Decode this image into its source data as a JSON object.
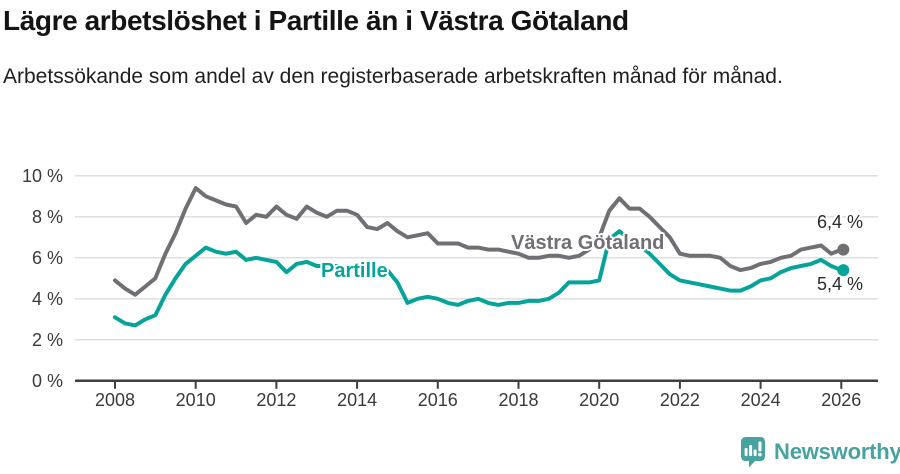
{
  "header": {},
  "chart_data": {
    "type": "line",
    "title": "Lägre arbetslöshet i Partille än i Västra Götaland",
    "subtitle": "Arbetssökande som andel av den registerbaserade arbetskraften månad för månad.",
    "unit": "%",
    "grid": "horizontal",
    "legend_position": "inline-labels",
    "xlim": [
      2007.0,
      2026.9
    ],
    "ylim": [
      0,
      10
    ],
    "y_ticks": [
      {
        "value": 0,
        "label": "0 %"
      },
      {
        "value": 2,
        "label": "2 %"
      },
      {
        "value": 4,
        "label": "4 %"
      },
      {
        "value": 6,
        "label": "6 %"
      },
      {
        "value": 8,
        "label": "8 %"
      },
      {
        "value": 10,
        "label": "10 %"
      }
    ],
    "x_ticks": [
      {
        "value": 2008,
        "label": "2008"
      },
      {
        "value": 2010,
        "label": "2010"
      },
      {
        "value": 2012,
        "label": "2012"
      },
      {
        "value": 2014,
        "label": "2014"
      },
      {
        "value": 2016,
        "label": "2016"
      },
      {
        "value": 2018,
        "label": "2018"
      },
      {
        "value": 2020,
        "label": "2020"
      },
      {
        "value": 2022,
        "label": "2022"
      },
      {
        "value": 2024,
        "label": "2024"
      },
      {
        "value": 2026,
        "label": "2026"
      }
    ],
    "x": [
      2008,
      2008.25,
      2008.5,
      2008.75,
      2009,
      2009.25,
      2009.5,
      2009.75,
      2010,
      2010.25,
      2010.5,
      2010.75,
      2011,
      2011.25,
      2011.5,
      2011.75,
      2012,
      2012.25,
      2012.5,
      2012.75,
      2013,
      2013.25,
      2013.5,
      2013.75,
      2014,
      2014.25,
      2014.5,
      2014.75,
      2015,
      2015.25,
      2015.5,
      2015.75,
      2016,
      2016.25,
      2016.5,
      2016.75,
      2017,
      2017.25,
      2017.5,
      2017.75,
      2018,
      2018.25,
      2018.5,
      2018.75,
      2019,
      2019.25,
      2019.5,
      2019.75,
      2020,
      2020.25,
      2020.5,
      2020.75,
      2021,
      2021.25,
      2021.5,
      2021.75,
      2022,
      2022.25,
      2022.5,
      2022.75,
      2023,
      2023.25,
      2023.5,
      2023.75,
      2024,
      2024.25,
      2024.5,
      2024.75,
      2025,
      2025.25,
      2025.5,
      2025.75,
      2026
    ],
    "series": [
      {
        "name": "Västra Götaland",
        "color": "#6f6f74",
        "end_value": 6.4,
        "end_label": "6,4 %",
        "values": [
          4.9,
          4.5,
          4.2,
          4.6,
          5.0,
          6.2,
          7.2,
          8.4,
          9.4,
          9.0,
          8.8,
          8.6,
          8.5,
          7.7,
          8.1,
          8.0,
          8.5,
          8.1,
          7.9,
          8.5,
          8.2,
          8.0,
          8.3,
          8.3,
          8.1,
          7.5,
          7.4,
          7.7,
          7.3,
          7.0,
          7.1,
          7.2,
          6.7,
          6.7,
          6.7,
          6.5,
          6.5,
          6.4,
          6.4,
          6.3,
          6.2,
          6.0,
          6.0,
          6.1,
          6.1,
          6.0,
          6.1,
          6.4,
          7.0,
          8.3,
          8.9,
          8.4,
          8.4,
          8.0,
          7.5,
          7.0,
          6.2,
          6.1,
          6.1,
          6.1,
          6.0,
          5.6,
          5.4,
          5.5,
          5.7,
          5.8,
          6.0,
          6.1,
          6.4,
          6.5,
          6.6,
          6.2,
          6.4
        ]
      },
      {
        "name": "Partille",
        "color": "#05a39a",
        "end_value": 5.4,
        "end_label": "5,4 %",
        "values": [
          3.1,
          2.8,
          2.7,
          3.0,
          3.2,
          4.2,
          5.0,
          5.7,
          6.1,
          6.5,
          6.3,
          6.2,
          6.3,
          5.9,
          6.0,
          5.9,
          5.8,
          5.3,
          5.7,
          5.8,
          5.6,
          5.6,
          5.6,
          5.5,
          5.5,
          5.4,
          5.5,
          5.4,
          4.8,
          3.8,
          4.0,
          4.1,
          4.0,
          3.8,
          3.7,
          3.9,
          4.0,
          3.8,
          3.7,
          3.8,
          3.8,
          3.9,
          3.9,
          4.0,
          4.3,
          4.8,
          4.8,
          4.8,
          4.9,
          6.9,
          7.3,
          6.9,
          6.6,
          6.2,
          5.7,
          5.2,
          4.9,
          4.8,
          4.7,
          4.6,
          4.5,
          4.4,
          4.4,
          4.6,
          4.9,
          5.0,
          5.3,
          5.5,
          5.6,
          5.7,
          5.9,
          5.6,
          5.4
        ]
      }
    ]
  },
  "footer": {
    "brand": "Newsworthy"
  },
  "colors": {
    "accent_teal": "#05a39a",
    "line_gray": "#6f6f74",
    "grid": "#dcdcdc",
    "axis": "#3f3f42",
    "tick_text": "#3a3a3a",
    "logo_teal": "#47a2a0"
  }
}
